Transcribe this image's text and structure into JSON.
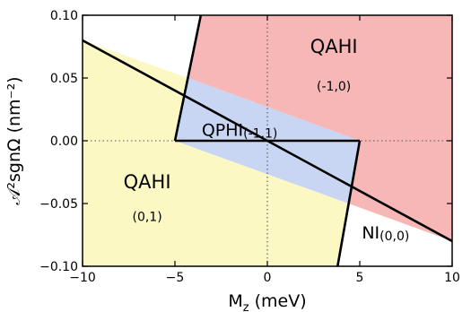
{
  "chart_data": {
    "type": "area",
    "title": "",
    "xlabel": "M",
    "xlabel_sub": "z",
    "xlabel_unit": " (meV)",
    "ylabel": "𝒜²sgnΩ (nm⁻²)",
    "xlim": [
      -10,
      10
    ],
    "ylim": [
      -0.1,
      0.1
    ],
    "x_ticks": [
      {
        "value": -10,
        "label": "−10"
      },
      {
        "value": -5,
        "label": "−5"
      },
      {
        "value": 0,
        "label": "0"
      },
      {
        "value": 5,
        "label": "5"
      },
      {
        "value": 10,
        "label": "10"
      }
    ],
    "y_ticks": [
      {
        "value": -0.1,
        "label": "−0.10"
      },
      {
        "value": -0.05,
        "label": "−0.05"
      },
      {
        "value": 0.0,
        "label": "0.00"
      },
      {
        "value": 0.05,
        "label": "0.05"
      },
      {
        "value": 0.1,
        "label": "0.10"
      }
    ],
    "grid": "dotted lines at x=0 and y=0",
    "regions": [
      {
        "name": "QAHI",
        "chern": "(0,1)",
        "color": "#fbf8c4",
        "polygon": [
          [
            -10,
            0.08
          ],
          [
            -10,
            -0.1
          ],
          [
            3.8,
            -0.1
          ],
          [
            4.4,
            -0.05
          ],
          [
            -5,
            0.0
          ],
          [
            -4.3,
            0.05
          ]
        ]
      },
      {
        "name": "QAHI",
        "chern": "(-1,0)",
        "color": "#f7b7b7",
        "polygon": [
          [
            -3.6,
            0.1
          ],
          [
            10,
            0.1
          ],
          [
            10,
            -0.08
          ],
          [
            4.4,
            -0.05
          ],
          [
            5,
            0.0
          ],
          [
            -4.3,
            0.05
          ]
        ]
      },
      {
        "name": "QPHI",
        "chern": "(-1,1)",
        "color": "#c8d6f3",
        "polygon": [
          [
            -4.3,
            0.05
          ],
          [
            5,
            0.0
          ],
          [
            4.4,
            -0.05
          ],
          [
            -5,
            0.0
          ]
        ]
      }
    ],
    "boundaries": [
      {
        "points": [
          [
            -10,
            0.08
          ],
          [
            10,
            -0.08
          ]
        ]
      },
      {
        "points": [
          [
            -5,
            0.0
          ],
          [
            5,
            0.0
          ]
        ]
      },
      {
        "points": [
          [
            -3.6,
            0.1
          ],
          [
            -5,
            0.0
          ]
        ]
      },
      {
        "points": [
          [
            5,
            0.0
          ],
          [
            3.8,
            -0.1
          ]
        ]
      }
    ],
    "labels": [
      {
        "text": "QAHI",
        "x": 3.6,
        "y": 0.07,
        "size": "big"
      },
      {
        "text": "(-1,0)",
        "x": 3.6,
        "y": 0.04,
        "size": "small"
      },
      {
        "text": "QAHI",
        "x": -6.5,
        "y": -0.038,
        "size": "big"
      },
      {
        "text": "(0,1)",
        "x": -6.5,
        "y": -0.064,
        "size": "small"
      },
      {
        "text": "QPHI",
        "x": -1.5,
        "y": 0.004,
        "size": "mid",
        "sub": "(-1,1)"
      },
      {
        "text": "NI",
        "x": 6.4,
        "y": -0.078,
        "size": "mid",
        "sub": "(0,0)"
      }
    ]
  }
}
